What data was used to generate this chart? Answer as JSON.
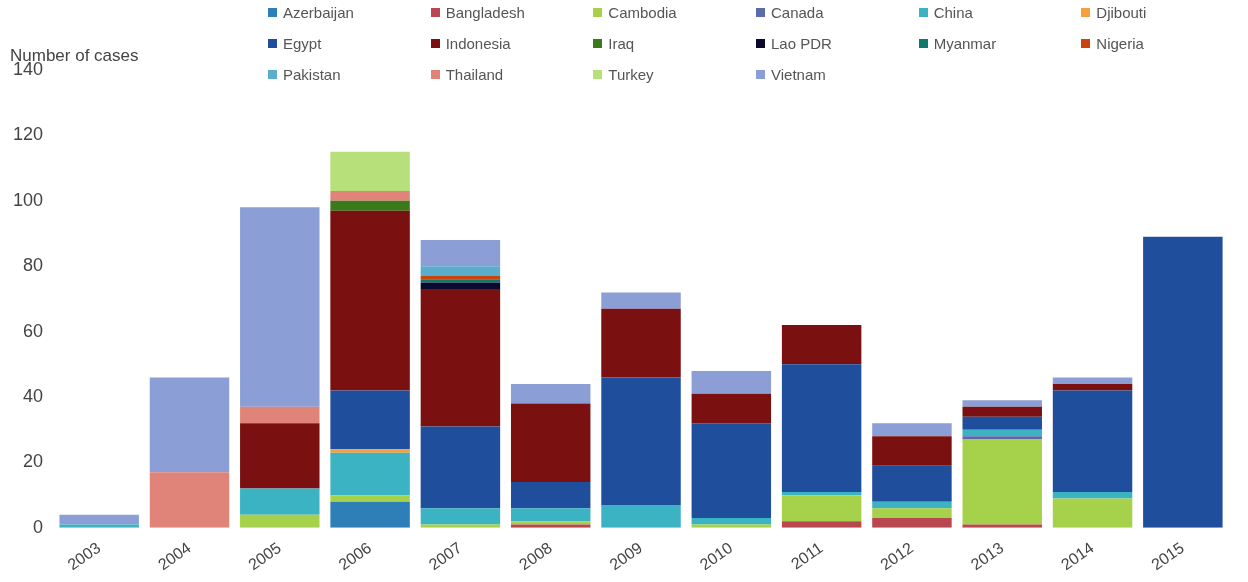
{
  "chart_data": {
    "type": "bar",
    "stacked": true,
    "ylabel": "Number of cases",
    "legend": "top right",
    "grid": false,
    "categories": [
      "2003",
      "2004",
      "2005",
      "2006",
      "2007",
      "2008",
      "2009",
      "2010",
      "2011",
      "2012",
      "2013",
      "2014",
      "2015"
    ],
    "ylim": [
      0,
      140
    ],
    "yticks": [
      0,
      20,
      40,
      60,
      80,
      100,
      120,
      140
    ],
    "series": [
      {
        "name": "Azerbaijan",
        "color": "#2e7fb8",
        "values": [
          0,
          0,
          0,
          8,
          0,
          0,
          0,
          0,
          0,
          0,
          0,
          0,
          0
        ]
      },
      {
        "name": "Bangladesh",
        "color": "#b8474f",
        "values": [
          0,
          0,
          0,
          0,
          0,
          1,
          0,
          0,
          2,
          3,
          1,
          0,
          0
        ]
      },
      {
        "name": "Cambodia",
        "color": "#a6d14a",
        "values": [
          0,
          0,
          4,
          2,
          1,
          1,
          0,
          1,
          8,
          3,
          26,
          9,
          0
        ]
      },
      {
        "name": "Canada",
        "color": "#5b6aa8",
        "values": [
          0,
          0,
          0,
          0,
          0,
          0,
          0,
          0,
          0,
          0,
          1,
          0,
          0
        ]
      },
      {
        "name": "China",
        "color": "#3bb3c3",
        "values": [
          1,
          0,
          8,
          13,
          5,
          4,
          7,
          2,
          1,
          2,
          2,
          2,
          0
        ]
      },
      {
        "name": "Djibouti",
        "color": "#f5a03c",
        "values": [
          0,
          0,
          0,
          1,
          0,
          0,
          0,
          0,
          0,
          0,
          0,
          0,
          0
        ]
      },
      {
        "name": "Egypt",
        "color": "#1f4e9c",
        "values": [
          0,
          0,
          0,
          18,
          25,
          8,
          39,
          29,
          39,
          11,
          4,
          31,
          89
        ]
      },
      {
        "name": "Indonesia",
        "color": "#7a1010",
        "values": [
          0,
          0,
          20,
          55,
          42,
          24,
          21,
          9,
          12,
          9,
          3,
          2,
          0
        ]
      },
      {
        "name": "Iraq",
        "color": "#3a7a1a",
        "values": [
          0,
          0,
          0,
          3,
          0,
          0,
          0,
          0,
          0,
          0,
          0,
          0,
          0
        ]
      },
      {
        "name": "Lao PDR",
        "color": "#0a0a30",
        "values": [
          0,
          0,
          0,
          0,
          2,
          0,
          0,
          0,
          0,
          0,
          0,
          0,
          0
        ]
      },
      {
        "name": "Myanmar",
        "color": "#0e7a6e",
        "values": [
          0,
          0,
          0,
          0,
          1,
          0,
          0,
          0,
          0,
          0,
          0,
          0,
          0
        ]
      },
      {
        "name": "Nigeria",
        "color": "#c8460e",
        "values": [
          0,
          0,
          0,
          0,
          1,
          0,
          0,
          0,
          0,
          0,
          0,
          0,
          0
        ]
      },
      {
        "name": "Pakistan",
        "color": "#5aaecc",
        "values": [
          0,
          0,
          0,
          0,
          3,
          0,
          0,
          0,
          0,
          0,
          0,
          0,
          0
        ]
      },
      {
        "name": "Thailand",
        "color": "#e0847a",
        "values": [
          0,
          17,
          5,
          3,
          0,
          0,
          0,
          0,
          0,
          0,
          0,
          0,
          0
        ]
      },
      {
        "name": "Turkey",
        "color": "#b8e07a",
        "values": [
          0,
          0,
          0,
          12,
          0,
          0,
          0,
          0,
          0,
          0,
          0,
          0,
          0
        ]
      },
      {
        "name": "Vietnam",
        "color": "#8c9ed6",
        "values": [
          3,
          29,
          61,
          0,
          8,
          6,
          5,
          7,
          0,
          4,
          2,
          2,
          0
        ]
      }
    ]
  }
}
